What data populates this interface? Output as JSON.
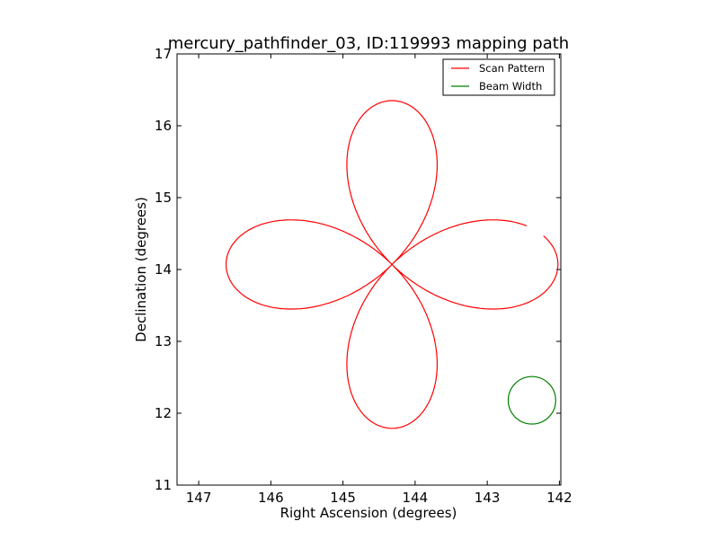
{
  "chart_data": {
    "type": "line",
    "title": "mercury_pathfinder_03, ID:119993 mapping path",
    "xlabel": "Right Ascension (degrees)",
    "ylabel": "Declination (degrees)",
    "xlim": [
      147.3,
      141.98
    ],
    "ylim": [
      11,
      17
    ],
    "x_inverted": true,
    "xticks": [
      147,
      146,
      145,
      144,
      143,
      142
    ],
    "yticks": [
      11,
      12,
      13,
      14,
      15,
      16,
      17
    ],
    "grid": false,
    "legend_position": "top-right",
    "series": [
      {
        "name": "Scan Pattern",
        "color": "#ff0000",
        "pattern": "four-petal rose",
        "center": [
          144.32,
          14.07
        ],
        "petal_reach_ra": 2.3,
        "petal_reach_dec": 2.28,
        "start": [
          146.63,
          13.87
        ],
        "end": [
          146.38,
          14.55
        ],
        "key_points": {
          "top_petal_tip": [
            144.32,
            16.35
          ],
          "bottom_petal_tip": [
            144.32,
            11.79
          ],
          "right_petal_tip": [
            142.02,
            14.07
          ],
          "left_petal_max_ra": 146.63
        }
      },
      {
        "name": "Beam Width",
        "color": "#008000",
        "shape": "circle",
        "center": [
          142.38,
          12.18
        ],
        "radius_deg": 0.33
      }
    ]
  }
}
